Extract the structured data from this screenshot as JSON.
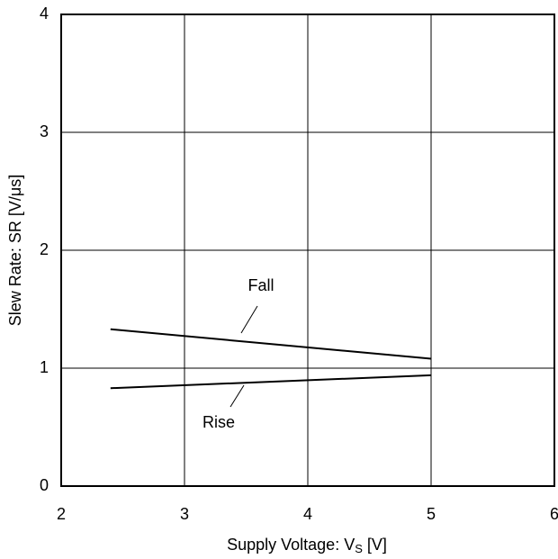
{
  "chart_data": {
    "type": "line",
    "x_label": {
      "text": "Supply Voltage: V",
      "subscript": "S",
      "suffix": " [V]"
    },
    "y_label": "Slew Rate: SR [V/μs]",
    "xlim": [
      2,
      6
    ],
    "xticks": [
      2,
      3,
      4,
      5,
      6
    ],
    "ylim": [
      0,
      4
    ],
    "yticks": [
      0,
      1,
      2,
      3,
      4
    ],
    "grid": true,
    "series": [
      {
        "name": "Fall",
        "color": "#000000",
        "x": [
          2.4,
          5.0
        ],
        "values": [
          1.33,
          1.08
        ]
      },
      {
        "name": "Rise",
        "color": "#000000",
        "x": [
          2.4,
          5.0
        ],
        "values": [
          0.83,
          0.94
        ]
      }
    ]
  }
}
